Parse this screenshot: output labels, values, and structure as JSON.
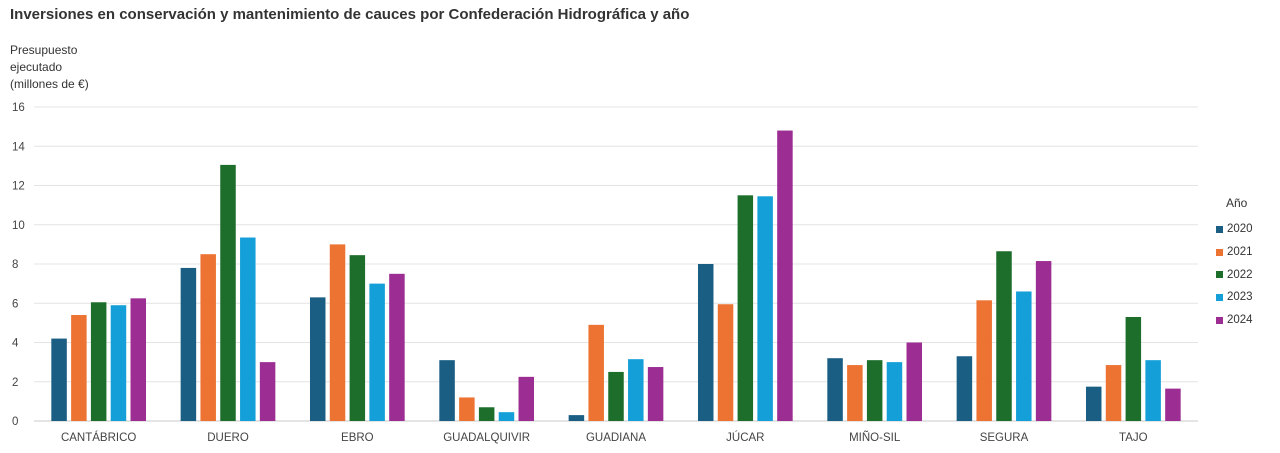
{
  "chart_data": {
    "type": "bar",
    "title": "Inversiones en conservación y mantenimiento de cauces por Confederación Hidrográfica y año",
    "ylabel": "Presupuesto ejecutado (millones de €)",
    "ylabel_lines": [
      "Presupuesto",
      "ejecutado",
      "(millones de €)"
    ],
    "xlabel": "",
    "ylim": [
      0,
      16
    ],
    "yticks": [
      0,
      2,
      4,
      6,
      8,
      10,
      12,
      14,
      16
    ],
    "grid": true,
    "legend_title": "Año",
    "legend_position": "right",
    "categories": [
      "CANTÁBRICO",
      "DUERO",
      "EBRO",
      "GUADALQUIVIR",
      "GUADIANA",
      "JÚCAR",
      "MIÑO-SIL",
      "SEGURA",
      "TAJO"
    ],
    "series": [
      {
        "name": "2020",
        "color": "#1a5e84",
        "values": [
          4.2,
          7.8,
          6.3,
          3.1,
          0.3,
          8.0,
          3.2,
          3.3,
          1.75
        ]
      },
      {
        "name": "2021",
        "color": "#ed7332",
        "values": [
          5.4,
          8.5,
          9.0,
          1.2,
          4.9,
          5.95,
          2.85,
          6.15,
          2.85
        ]
      },
      {
        "name": "2022",
        "color": "#1c6e2a",
        "values": [
          6.05,
          13.05,
          8.45,
          0.7,
          2.5,
          11.5,
          3.1,
          8.65,
          5.3
        ]
      },
      {
        "name": "2023",
        "color": "#149fd8",
        "values": [
          5.9,
          9.35,
          7.0,
          0.45,
          3.15,
          11.45,
          3.0,
          6.6,
          3.1
        ]
      },
      {
        "name": "2024",
        "color": "#9c2d93",
        "values": [
          6.25,
          3.0,
          7.5,
          2.25,
          2.75,
          14.8,
          4.0,
          8.15,
          1.65
        ]
      }
    ]
  }
}
